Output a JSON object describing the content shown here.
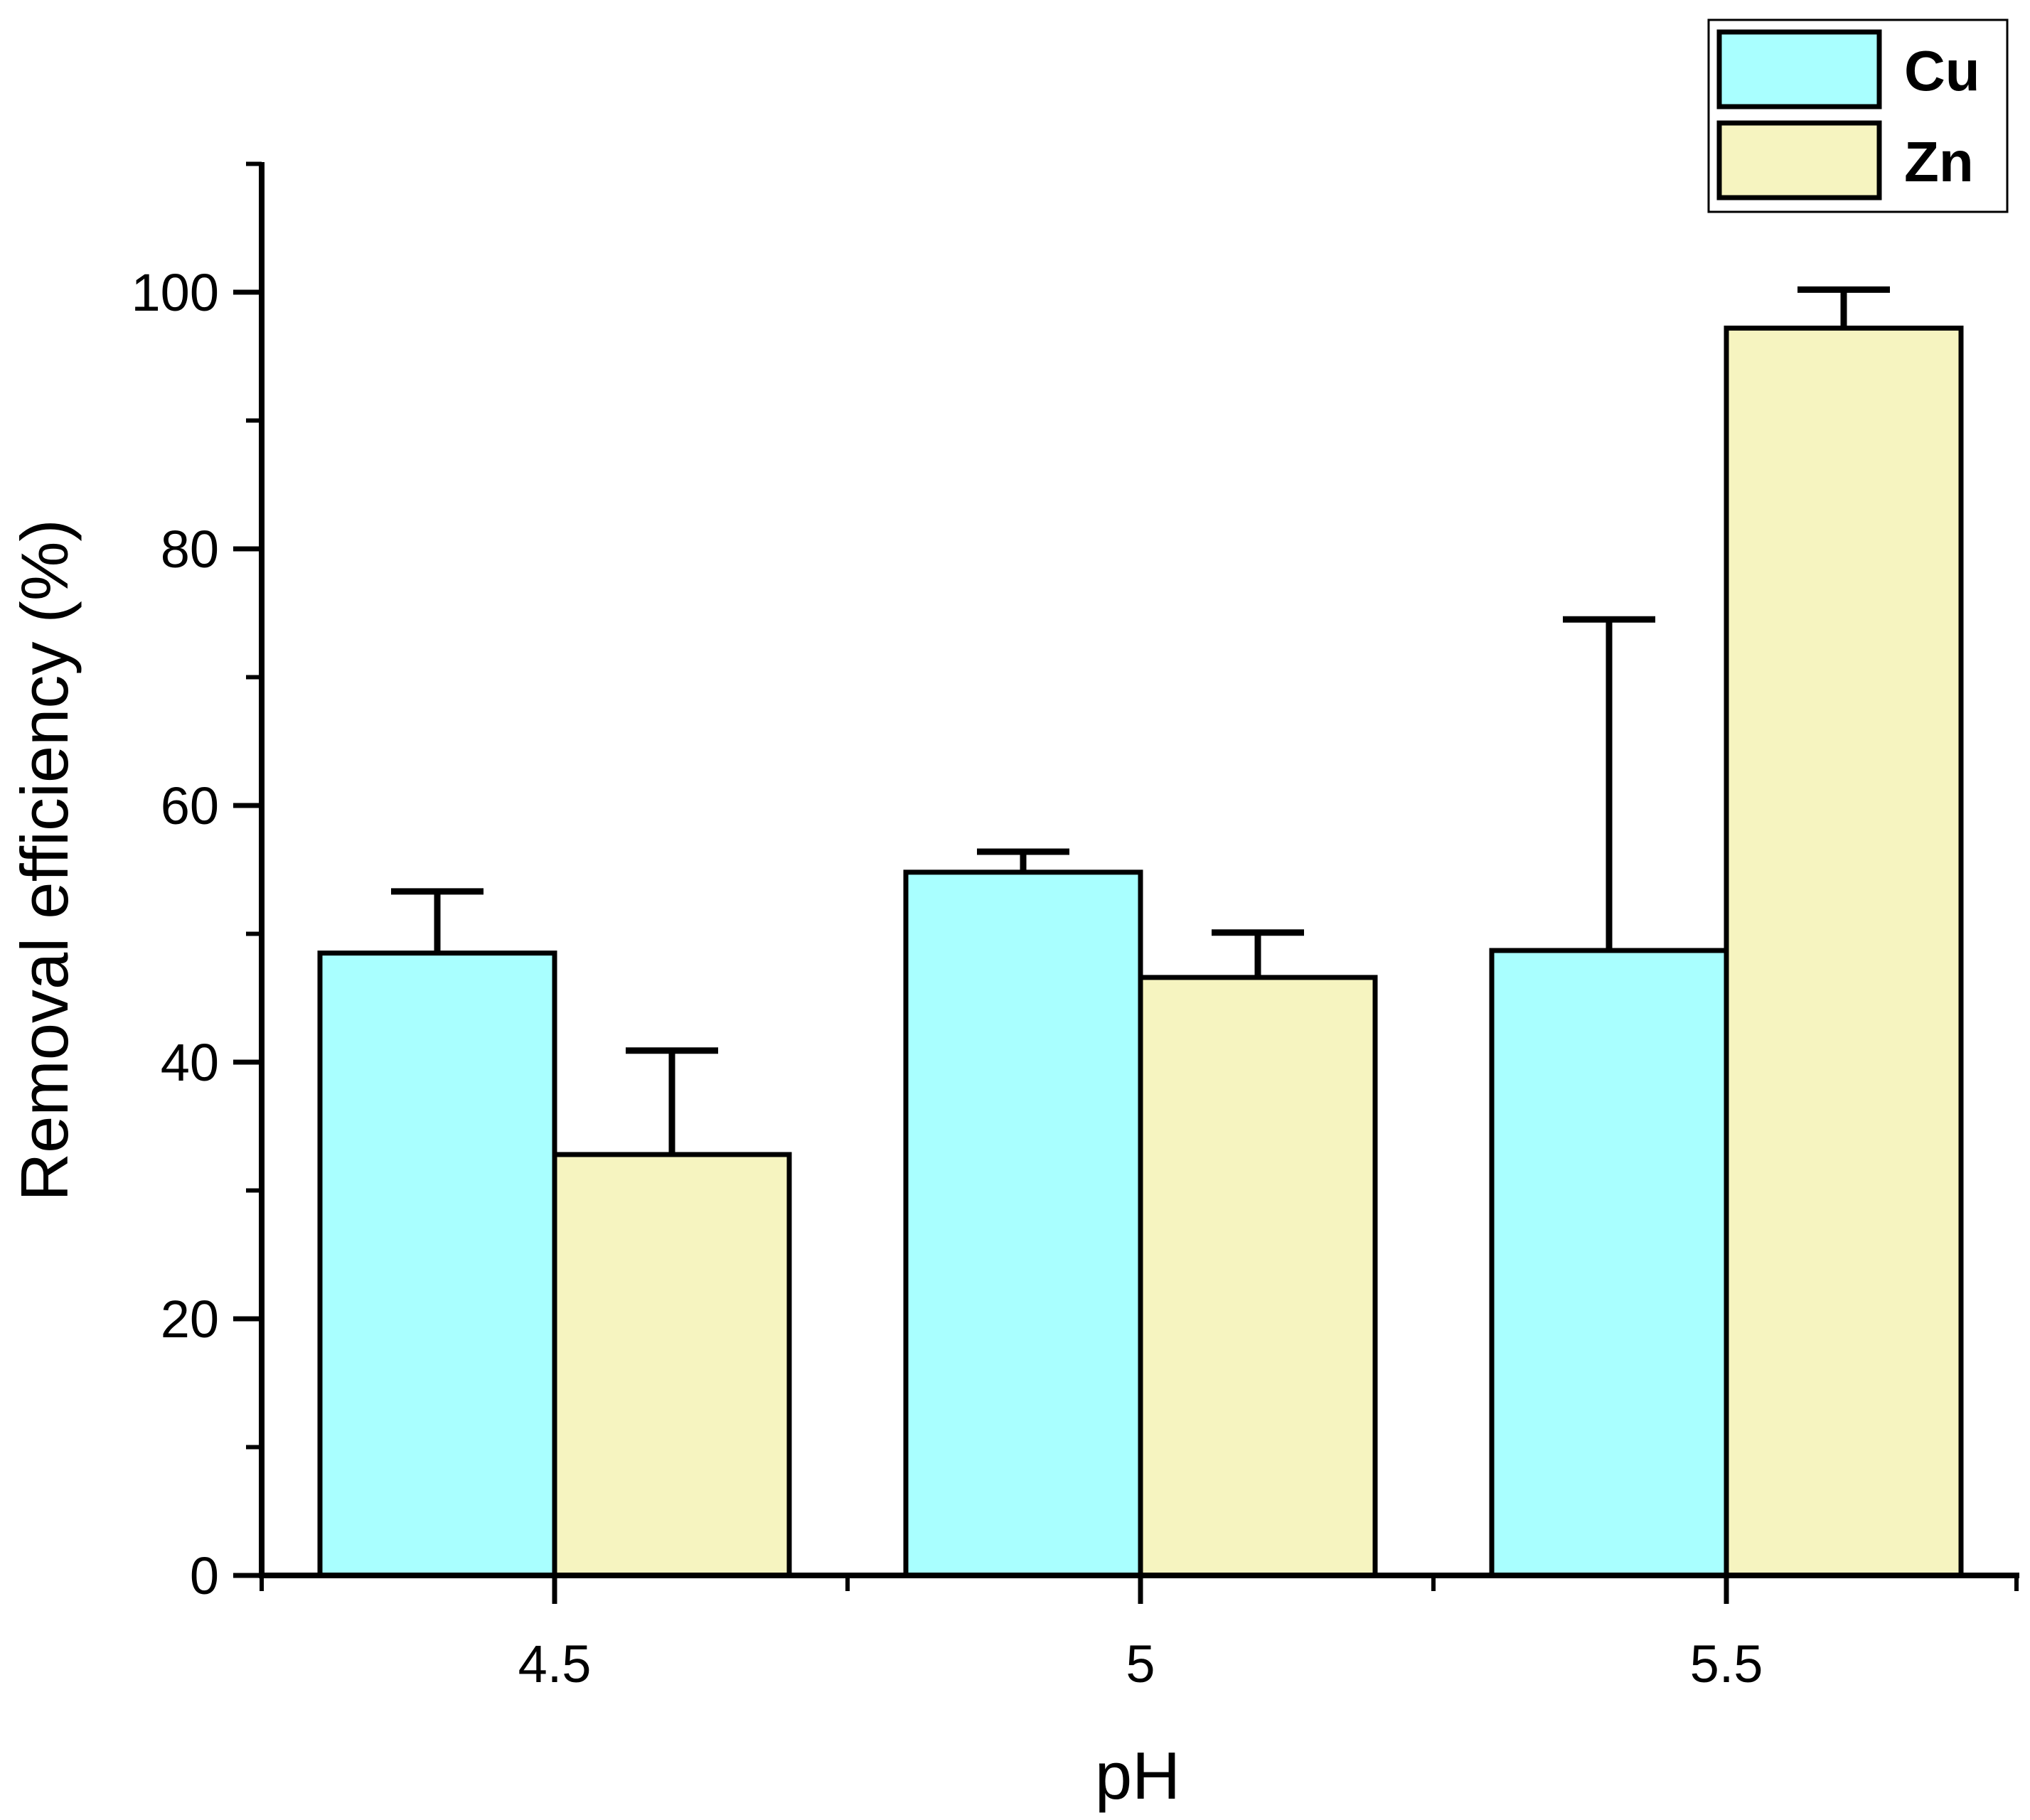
{
  "chart_data": {
    "type": "bar",
    "xlabel": "pH",
    "ylabel": "Removal efficiency (%)",
    "categories": [
      "4.5",
      "5",
      "5.5"
    ],
    "ylim": [
      0,
      110
    ],
    "yticks": [
      "0",
      "20",
      "40",
      "60",
      "80",
      "100"
    ],
    "minor_y_step": 10,
    "grid": false,
    "legend_position": "top-right",
    "series": [
      {
        "name": "Cu",
        "color": "#a9ffff",
        "values": [
          48.5,
          54.8,
          48.7
        ],
        "errors": [
          4.8,
          1.6,
          25.8
        ]
      },
      {
        "name": "Zn",
        "color": "#f6f4c0",
        "values": [
          32.8,
          46.6,
          97.2
        ],
        "errors": [
          8.1,
          3.5,
          3.0
        ]
      }
    ]
  }
}
